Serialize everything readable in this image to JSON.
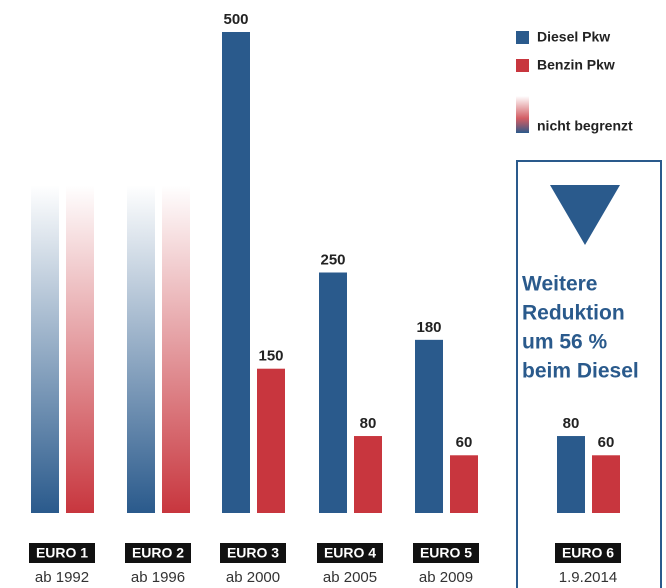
{
  "chart_data": {
    "type": "bar",
    "categories": [
      "EURO 1",
      "EURO 2",
      "EURO 3",
      "EURO 4",
      "EURO 5",
      "EURO 6"
    ],
    "periods": [
      "ab 1992",
      "ab 1996",
      "ab 2000",
      "ab 2005",
      "ab 2009",
      "1.9.2014"
    ],
    "series": [
      {
        "name": "Diesel Pkw",
        "color": "#2a5a8c",
        "values": [
          null,
          null,
          500,
          250,
          180,
          80
        ]
      },
      {
        "name": "Benzin Pkw",
        "color": "#c8363e",
        "values": [
          null,
          null,
          150,
          80,
          60,
          60
        ]
      }
    ],
    "unlimited_label": "nicht begrenzt",
    "note": [
      "Weitere",
      "Reduktion",
      "um 56 %",
      "beim Diesel"
    ],
    "legend": "top-right"
  }
}
